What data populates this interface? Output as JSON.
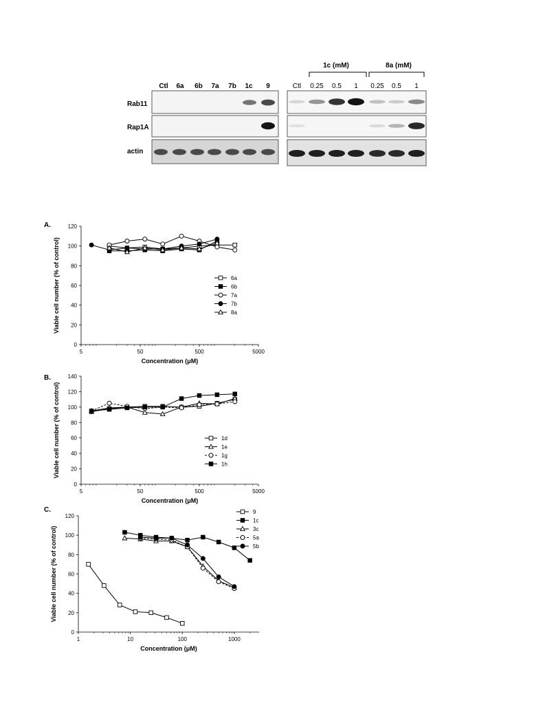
{
  "blots": {
    "left": {
      "lanes": [
        "Ctl",
        "6a",
        "6b",
        "7a",
        "7b",
        "1c",
        "9"
      ],
      "rows": [
        {
          "label": "Rab11",
          "bands": [
            0,
            0,
            0,
            0,
            0,
            0.55,
            0.75
          ]
        },
        {
          "label": "Rap1A",
          "bands": [
            0,
            0,
            0,
            0,
            0,
            0,
            1.0
          ]
        },
        {
          "label": "actin",
          "bands": [
            0.75,
            0.75,
            0.75,
            0.75,
            0.75,
            0.75,
            0.75
          ]
        }
      ]
    },
    "right": {
      "lanes": [
        "Ctl",
        "0.25",
        "0.5",
        "1",
        "0.25",
        "0.5",
        "1"
      ],
      "groups": [
        {
          "label": "1c (mM)"
        },
        {
          "label": "8a (mM)"
        }
      ],
      "rows": [
        {
          "label": "Rab11",
          "bands": [
            0.1,
            0.4,
            0.85,
            1.0,
            0.2,
            0.15,
            0.45
          ]
        },
        {
          "label": "Rap1A",
          "bands": [
            0.05,
            0,
            0,
            0,
            0.08,
            0.25,
            0.9
          ]
        },
        {
          "label": "actin",
          "bands": [
            0.95,
            0.95,
            0.95,
            0.95,
            0.9,
            0.9,
            0.95
          ]
        }
      ]
    }
  },
  "chart_data": [
    {
      "panel": "A.",
      "type": "line",
      "xlabel": "Concentration (μM)",
      "ylabel": "Viable cell number (% of control)",
      "xscale": "log",
      "xlim": [
        5,
        5000
      ],
      "xticks": [
        "5",
        "50",
        "500",
        "5000"
      ],
      "ylim": [
        0,
        120
      ],
      "yticks": [
        "0",
        "20",
        "40",
        "60",
        "80",
        "100",
        "120"
      ],
      "legend_position": "right",
      "series": [
        {
          "name": "6a",
          "marker": "square-open",
          "dash": false,
          "x": [
            15,
            30,
            60,
            120,
            250,
            500,
            1000,
            2000
          ],
          "y": [
            100,
            98,
            99,
            97,
            98,
            100,
            101,
            101
          ]
        },
        {
          "name": "6b",
          "marker": "square-filled",
          "dash": false,
          "x": [
            15,
            30,
            60,
            120,
            250,
            500,
            1000
          ],
          "y": [
            95,
            95,
            96,
            95,
            97,
            96,
            105
          ]
        },
        {
          "name": "7a",
          "marker": "circle-open",
          "dash": false,
          "x": [
            15,
            30,
            60,
            120,
            250,
            500,
            1000,
            2000
          ],
          "y": [
            101,
            105,
            107,
            102,
            110,
            105,
            99,
            96
          ]
        },
        {
          "name": "7b",
          "marker": "circle-filled",
          "dash": false,
          "x": [
            7.5,
            15,
            30,
            60,
            120,
            250,
            500,
            1000
          ],
          "y": [
            101,
            96,
            98,
            97,
            97,
            100,
            102,
            107
          ]
        },
        {
          "name": "8a",
          "marker": "triangle-open",
          "dash": false,
          "x": [
            15,
            30,
            60,
            120,
            250,
            500,
            1000
          ],
          "y": [
            98,
            94,
            98,
            96,
            98,
            97,
            103
          ]
        }
      ]
    },
    {
      "panel": "B.",
      "type": "line",
      "xlabel": "Concentration (μM)",
      "ylabel": "Viable cell number (% of control)",
      "xscale": "log",
      "xlim": [
        5,
        5000
      ],
      "xticks": [
        "5",
        "50",
        "500",
        "5000"
      ],
      "ylim": [
        0,
        140
      ],
      "yticks": [
        "0",
        "20",
        "40",
        "60",
        "80",
        "100",
        "120",
        "140"
      ],
      "legend_position": "right",
      "series": [
        {
          "name": "1d",
          "marker": "square-open",
          "dash": false,
          "x": [
            7.5,
            15,
            30,
            60,
            120,
            250,
            500,
            1000,
            2000
          ],
          "y": [
            94,
            98,
            100,
            101,
            101,
            100,
            101,
            105,
            110
          ]
        },
        {
          "name": "1e",
          "marker": "triangle-open",
          "dash": false,
          "x": [
            7.5,
            15,
            30,
            60,
            120,
            250,
            500,
            1000,
            2000
          ],
          "y": [
            95,
            99,
            100,
            93,
            91,
            100,
            105,
            104,
            111
          ]
        },
        {
          "name": "1g",
          "marker": "circle-open",
          "dash": true,
          "x": [
            7.5,
            15,
            30,
            60,
            120,
            250,
            500,
            1000,
            2000
          ],
          "y": [
            95,
            105,
            101,
            98,
            100,
            99,
            103,
            104,
            107
          ]
        },
        {
          "name": "1h",
          "marker": "square-filled",
          "dash": false,
          "x": [
            7.5,
            15,
            30,
            60,
            120,
            250,
            500,
            1000,
            2000
          ],
          "y": [
            95,
            97,
            99,
            100,
            100,
            111,
            115,
            116,
            117
          ]
        }
      ]
    },
    {
      "panel": "C.",
      "type": "line",
      "xlabel": "Concentration (μM)",
      "ylabel": "Viable cell number (% of control)",
      "xscale": "log",
      "xlim": [
        1,
        3000
      ],
      "xticks": [
        "1",
        "10",
        "100",
        "1000"
      ],
      "ylim": [
        0,
        120
      ],
      "yticks": [
        "0",
        "20",
        "40",
        "60",
        "80",
        "100",
        "120"
      ],
      "legend_position": "top-right",
      "series": [
        {
          "name": "9",
          "marker": "square-open",
          "dash": false,
          "x": [
            1.56,
            3.12,
            6.25,
            12.5,
            25,
            50,
            100
          ],
          "y": [
            70,
            48,
            28,
            21,
            20,
            15,
            9
          ]
        },
        {
          "name": "1c",
          "marker": "square-filled",
          "dash": false,
          "x": [
            7.8,
            15.6,
            31.25,
            62.5,
            125,
            250,
            500,
            1000,
            2000
          ],
          "y": [
            103,
            100,
            98,
            97,
            95,
            98,
            93,
            87,
            74
          ]
        },
        {
          "name": "3c",
          "marker": "triangle-open",
          "dash": false,
          "x": [
            7.8,
            15.6,
            31.25,
            62.5,
            125,
            250,
            500,
            1000
          ],
          "y": [
            97,
            96,
            94,
            94,
            88,
            68,
            53,
            46
          ]
        },
        {
          "name": "5a",
          "marker": "circle-open",
          "dash": true,
          "x": [
            15.6,
            31.25,
            62.5,
            125,
            250,
            500,
            1000
          ],
          "y": [
            97,
            96,
            95,
            88,
            66,
            52,
            45
          ]
        },
        {
          "name": "5b",
          "marker": "circle-filled",
          "dash": false,
          "x": [
            15.6,
            31.25,
            62.5,
            125,
            250,
            500,
            1000
          ],
          "y": [
            98,
            97,
            97,
            90,
            76,
            57,
            47
          ]
        }
      ]
    }
  ]
}
